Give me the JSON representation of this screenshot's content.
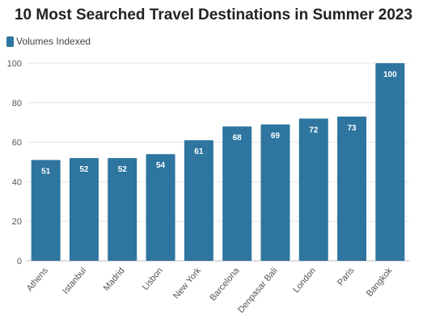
{
  "chart_data": {
    "type": "bar",
    "title": "10 Most Searched Travel Destinations in Summer 2023",
    "legend": {
      "label": "Volumes Indexed",
      "placement": "top-left"
    },
    "color": "#2e75a0",
    "categories": [
      "Athens",
      "Istanbul",
      "Madrid",
      "Lisbon",
      "New York",
      "Barcelona",
      "Denpasar Bali",
      "London",
      "Paris",
      "Bangkok"
    ],
    "series": [
      {
        "name": "Volumes Indexed",
        "values": [
          51,
          52,
          52,
          54,
          61,
          68,
          69,
          72,
          73,
          100
        ]
      }
    ],
    "ylim": [
      0,
      100
    ],
    "yticks": [
      0,
      20,
      40,
      60,
      80,
      100
    ],
    "grid": true
  }
}
